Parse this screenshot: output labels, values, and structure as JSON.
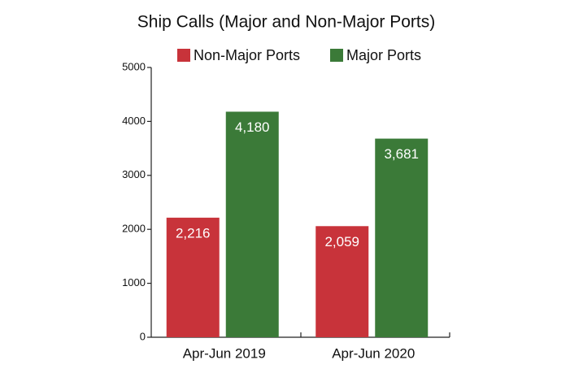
{
  "chart_data": {
    "type": "bar",
    "title": "Ship Calls (Major and Non-Major Ports)",
    "categories": [
      "Apr-Jun 2019",
      "Apr-Jun 2020"
    ],
    "series": [
      {
        "name": "Non-Major Ports",
        "color": "#c8333a",
        "values": [
          2216,
          2059
        ],
        "value_labels": [
          "2,216",
          "2,059"
        ]
      },
      {
        "name": "Major Ports",
        "color": "#3b7a38",
        "values": [
          4180,
          3681
        ],
        "value_labels": [
          "4,180",
          "3,681"
        ]
      }
    ],
    "ylim": [
      0,
      5000
    ],
    "yticks": [
      0,
      1000,
      2000,
      3000,
      4000,
      5000
    ],
    "legend": "top"
  }
}
